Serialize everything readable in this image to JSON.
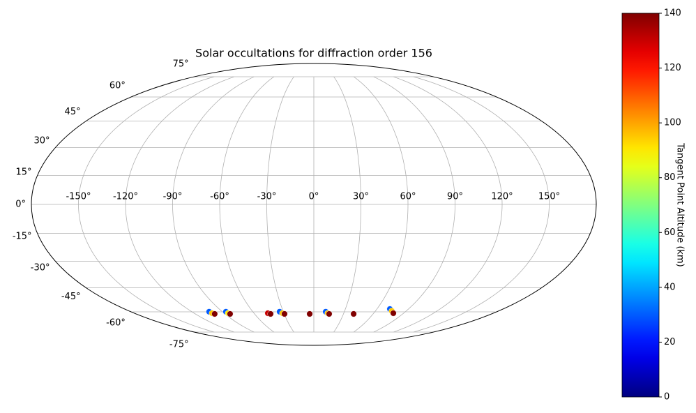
{
  "chart_data": {
    "type": "scatter",
    "projection": "mollweide",
    "title": "Solar occultations for diffraction order 156",
    "grid": true,
    "xticks": [
      {
        "value": -150,
        "label": "-150°"
      },
      {
        "value": -120,
        "label": "-120°"
      },
      {
        "value": -90,
        "label": "-90°"
      },
      {
        "value": -60,
        "label": "-60°"
      },
      {
        "value": -30,
        "label": "-30°"
      },
      {
        "value": 0,
        "label": "0°"
      },
      {
        "value": 30,
        "label": "30°"
      },
      {
        "value": 60,
        "label": "60°"
      },
      {
        "value": 90,
        "label": "90°"
      },
      {
        "value": 120,
        "label": "120°"
      },
      {
        "value": 150,
        "label": "150°"
      }
    ],
    "yticks": [
      {
        "value": -75,
        "label": "-75°"
      },
      {
        "value": -60,
        "label": "-60°"
      },
      {
        "value": -45,
        "label": "-45°"
      },
      {
        "value": -30,
        "label": "-30°"
      },
      {
        "value": -15,
        "label": "-15°"
      },
      {
        "value": 0,
        "label": "0°"
      },
      {
        "value": 15,
        "label": "15°"
      },
      {
        "value": 30,
        "label": "30°"
      },
      {
        "value": 45,
        "label": "45°"
      },
      {
        "value": 60,
        "label": "60°"
      },
      {
        "value": 75,
        "label": "75°"
      }
    ],
    "x": [
      -102.9,
      -102.0,
      -100.4,
      -86.4,
      -85.9,
      -84.8,
      -46.1,
      -43.8,
      -33.6,
      -31.4,
      -29.7,
      -4.2,
      11.7,
      14.0,
      15.5,
      40.3,
      72.3,
      75.9,
      79.7
    ],
    "y": [
      -59.9,
      -60.9,
      -61.4,
      -59.9,
      -60.9,
      -61.4,
      -60.9,
      -61.4,
      -59.9,
      -60.9,
      -61.4,
      -61.4,
      -59.9,
      -60.9,
      -61.4,
      -61.4,
      -58.1,
      -59.4,
      -60.9
    ],
    "z": [
      30,
      95,
      140,
      30,
      90,
      140,
      130,
      140,
      30,
      95,
      140,
      140,
      30,
      95,
      140,
      140,
      30,
      95,
      140
    ],
    "colorbar": {
      "label": "Tangent Point Altitude (km)",
      "colormap": "jet",
      "lim": [
        0,
        140
      ],
      "ticks": [
        0,
        20,
        40,
        60,
        80,
        100,
        120,
        140
      ]
    }
  }
}
